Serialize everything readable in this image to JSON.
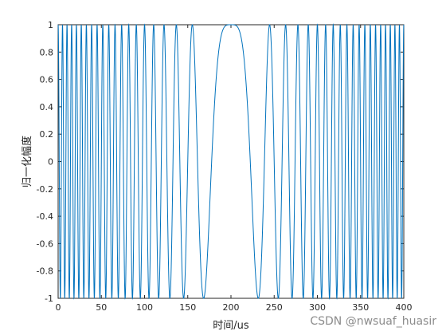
{
  "chart_data": {
    "type": "line",
    "title": "",
    "xlabel": "时间/us",
    "ylabel": "归一化幅度",
    "xlim": [
      0,
      400
    ],
    "ylim": [
      -1,
      1
    ],
    "xticks": [
      0,
      50,
      100,
      150,
      200,
      250,
      300,
      350,
      400
    ],
    "yticks": [
      -1,
      -0.8,
      -0.6,
      -0.4,
      -0.2,
      0,
      0.2,
      0.4,
      0.6,
      0.8,
      1
    ],
    "grid": false,
    "legend": "none",
    "series": [
      {
        "color": "#0072bd",
        "function": "cos(0.001 * pi * (t - 200)^2)",
        "t_range": [
          0,
          400
        ],
        "samples": 4001
      }
    ]
  },
  "watermark": "CSDN @nwsuaf_huasir",
  "colors": {
    "axis": "#262626",
    "line": "#0072bd"
  }
}
